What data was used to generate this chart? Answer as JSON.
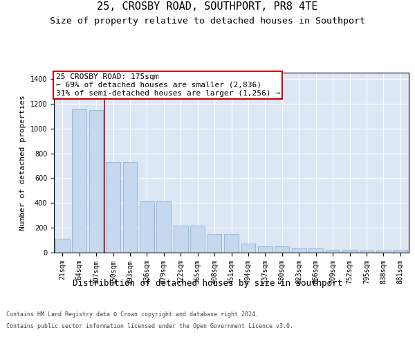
{
  "title": "25, CROSBY ROAD, SOUTHPORT, PR8 4TE",
  "subtitle": "Size of property relative to detached houses in Southport",
  "xlabel": "Distribution of detached houses by size in Southport",
  "ylabel": "Number of detached properties",
  "bar_color": "#c5d8ee",
  "bar_edge_color": "#7aaad0",
  "background_color": "#dce6f5",
  "categories": [
    "21sqm",
    "64sqm",
    "107sqm",
    "150sqm",
    "193sqm",
    "236sqm",
    "279sqm",
    "322sqm",
    "365sqm",
    "408sqm",
    "451sqm",
    "494sqm",
    "537sqm",
    "580sqm",
    "623sqm",
    "666sqm",
    "709sqm",
    "752sqm",
    "795sqm",
    "838sqm",
    "881sqm"
  ],
  "values": [
    110,
    1155,
    1150,
    730,
    730,
    415,
    415,
    215,
    215,
    150,
    150,
    70,
    50,
    50,
    35,
    35,
    20,
    20,
    15,
    15,
    20
  ],
  "ylim": [
    0,
    1450
  ],
  "yticks": [
    0,
    200,
    400,
    600,
    800,
    1000,
    1200,
    1400
  ],
  "annotation_text": "25 CROSBY ROAD: 175sqm\n← 69% of detached houses are smaller (2,836)\n31% of semi-detached houses are larger (1,256) →",
  "vline_x": 2.5,
  "vline_color": "#cc0000",
  "annotation_box_edgecolor": "#cc0000",
  "footer_line1": "Contains HM Land Registry data © Crown copyright and database right 2024.",
  "footer_line2": "Contains public sector information licensed under the Open Government Licence v3.0.",
  "title_fontsize": 11,
  "subtitle_fontsize": 9.5,
  "ylabel_fontsize": 8,
  "xlabel_fontsize": 9,
  "tick_fontsize": 7,
  "annotation_fontsize": 8,
  "footer_fontsize": 6
}
